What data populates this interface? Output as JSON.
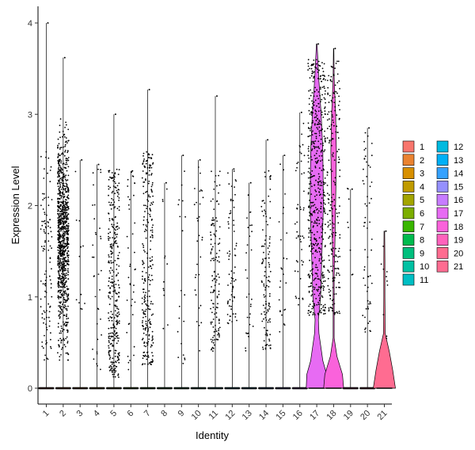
{
  "chart_data": {
    "type": "violin",
    "xlabel": "Identity",
    "ylabel": "Expression Level",
    "ylim": [
      -0.15,
      4.2
    ],
    "yticks": [
      0,
      1,
      2,
      3,
      4
    ],
    "categories": [
      "1",
      "2",
      "3",
      "4",
      "5",
      "6",
      "7",
      "8",
      "9",
      "10",
      "11",
      "12",
      "13",
      "14",
      "15",
      "16",
      "17",
      "18",
      "19",
      "20",
      "21"
    ],
    "colors": [
      "#F8766D",
      "#EA8331",
      "#D89000",
      "#C09B00",
      "#A3A500",
      "#7CAE00",
      "#39B600",
      "#00BB4E",
      "#00BF7D",
      "#00C1A3",
      "#00BFC4",
      "#00BAE0",
      "#00B0F6",
      "#35A2FF",
      "#9590FF",
      "#C77CFF",
      "#E76BF3",
      "#FA62DB",
      "#FF62BC",
      "#FF6C90",
      "#FF6C91"
    ],
    "max_values": [
      4.0,
      3.62,
      2.5,
      2.45,
      3.0,
      2.38,
      3.27,
      2.25,
      2.55,
      2.5,
      3.2,
      2.4,
      2.25,
      2.72,
      2.55,
      3.02,
      3.77,
      3.72,
      2.18,
      2.85,
      1.72
    ],
    "density": {
      "17": [
        [
          0.0,
          0.95
        ],
        [
          0.15,
          0.9
        ],
        [
          0.3,
          0.55
        ],
        [
          0.6,
          0.2
        ],
        [
          0.75,
          0.15
        ],
        [
          1.0,
          0.35
        ],
        [
          1.4,
          0.45
        ],
        [
          2.0,
          0.6
        ],
        [
          2.6,
          0.55
        ],
        [
          3.0,
          0.4
        ],
        [
          3.4,
          0.18
        ],
        [
          3.77,
          0.03
        ]
      ],
      "18": [
        [
          0.0,
          0.9
        ],
        [
          0.15,
          0.8
        ],
        [
          0.35,
          0.3
        ],
        [
          0.55,
          0.05
        ],
        [
          1.2,
          0.05
        ],
        [
          1.6,
          0.12
        ],
        [
          2.2,
          0.2
        ],
        [
          2.6,
          0.25
        ],
        [
          3.0,
          0.18
        ],
        [
          3.4,
          0.05
        ],
        [
          3.72,
          0.02
        ]
      ],
      "21": [
        [
          0.0,
          1.0
        ],
        [
          0.2,
          0.75
        ],
        [
          0.4,
          0.45
        ],
        [
          0.6,
          0.08
        ],
        [
          1.0,
          0.05
        ],
        [
          1.4,
          0.05
        ],
        [
          1.72,
          0.03
        ]
      ]
    },
    "legend": {
      "labels": [
        "1",
        "2",
        "3",
        "4",
        "5",
        "6",
        "7",
        "8",
        "9",
        "10",
        "11",
        "12",
        "13",
        "14",
        "15",
        "16",
        "17",
        "18",
        "19",
        "20",
        "21"
      ],
      "position": "right"
    },
    "grid": false
  }
}
